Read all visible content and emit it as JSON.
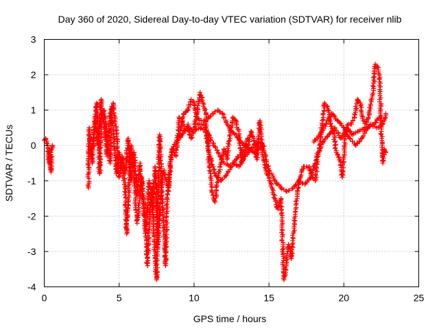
{
  "chart_data": {
    "type": "scatter",
    "title": "Day 360 of 2020, Sidereal Day-to-day VTEC variation (SDTVAR) for receiver nlib",
    "xlabel": "GPS time / hours",
    "ylabel": "SDTVAR / TECUs",
    "xlim": [
      0,
      25
    ],
    "ylim": [
      -4,
      3
    ],
    "x_ticks": [
      "0",
      "5",
      "10",
      "15",
      "20",
      "25"
    ],
    "y_ticks": [
      "3",
      "2",
      "1",
      "0",
      "-1",
      "-2",
      "-3",
      "-4"
    ],
    "grid": true,
    "marker": "+",
    "color": "#ff0000",
    "series": [
      {
        "name": "SDTVAR",
        "segments": [
          [
            [
              0.0,
              0.15
            ],
            [
              0.1,
              0.2
            ],
            [
              0.2,
              0.05
            ],
            [
              0.25,
              -0.3
            ],
            [
              0.3,
              -0.5
            ],
            [
              0.35,
              -0.1
            ],
            [
              0.4,
              -0.6
            ],
            [
              0.45,
              -0.75
            ],
            [
              0.5,
              -0.1
            ],
            [
              0.55,
              0.0
            ]
          ],
          [
            [
              2.95,
              -1.2
            ],
            [
              3.0,
              0.5
            ],
            [
              3.1,
              -0.3
            ],
            [
              3.3,
              0.2
            ],
            [
              3.5,
              1.2
            ],
            [
              3.6,
              0.3
            ],
            [
              3.7,
              -0.8
            ],
            [
              3.8,
              0.8
            ],
            [
              4.0,
              1.0
            ],
            [
              4.2,
              0.2
            ],
            [
              4.4,
              -0.5
            ],
            [
              4.5,
              1.1
            ],
            [
              4.6,
              0.4
            ],
            [
              4.8,
              -0.8
            ],
            [
              5.0,
              -0.2
            ],
            [
              5.2,
              -0.6
            ],
            [
              5.4,
              -1.2
            ],
            [
              5.5,
              -2.5
            ],
            [
              5.6,
              -1.6
            ],
            [
              5.8,
              0.0
            ],
            [
              6.0,
              -0.8
            ],
            [
              6.2,
              -2.2
            ],
            [
              6.3,
              -1.8
            ],
            [
              6.5,
              -0.9
            ],
            [
              6.7,
              -2.0
            ],
            [
              6.9,
              -3.4
            ],
            [
              7.0,
              -2.2
            ],
            [
              7.2,
              -1.2
            ],
            [
              7.4,
              -3.2
            ],
            [
              7.5,
              -3.8
            ],
            [
              7.6,
              -1.5
            ],
            [
              7.7,
              0.3
            ],
            [
              7.8,
              -0.8
            ],
            [
              8.0,
              -2.4
            ],
            [
              8.1,
              -3.4
            ],
            [
              8.2,
              -1.5
            ],
            [
              8.5,
              -0.1
            ],
            [
              8.8,
              -0.3
            ],
            [
              9.0,
              0.8
            ],
            [
              9.2,
              0.7
            ],
            [
              9.4,
              0.4
            ],
            [
              9.6,
              0.6
            ],
            [
              9.8,
              0.2
            ],
            [
              10.0,
              0.5
            ],
            [
              10.2,
              0.9
            ],
            [
              10.4,
              1.5
            ],
            [
              10.6,
              1.2
            ],
            [
              10.8,
              0.9
            ],
            [
              11.0,
              -0.5
            ],
            [
              11.2,
              -1.3
            ],
            [
              11.4,
              -1.6
            ],
            [
              11.6,
              -0.9
            ],
            [
              11.8,
              -0.5
            ],
            [
              12.0,
              -0.1
            ],
            [
              12.2,
              -0.4
            ],
            [
              12.4,
              0.3
            ],
            [
              12.6,
              0.8
            ],
            [
              12.8,
              0.7
            ],
            [
              13.0,
              0.3
            ],
            [
              13.2,
              -0.5
            ],
            [
              13.4,
              -0.2
            ],
            [
              13.6,
              0.0
            ],
            [
              13.8,
              0.4
            ],
            [
              14.0,
              0.2
            ],
            [
              14.2,
              -0.4
            ],
            [
              14.4,
              0.7
            ],
            [
              14.6,
              -0.3
            ],
            [
              14.8,
              -0.7
            ],
            [
              15.0,
              -0.9
            ],
            [
              15.2,
              -1.2
            ],
            [
              15.4,
              -1.5
            ],
            [
              15.6,
              -1.8
            ],
            [
              15.8,
              -1.5
            ],
            [
              16.0,
              -3.8
            ],
            [
              16.1,
              -3.5
            ],
            [
              16.3,
              -2.8
            ],
            [
              16.5,
              -3.2
            ],
            [
              16.7,
              -2.2
            ],
            [
              16.9,
              -1.3
            ],
            [
              17.1,
              -0.9
            ],
            [
              17.3,
              -0.6
            ],
            [
              17.5,
              -0.6
            ],
            [
              17.7,
              -0.6
            ],
            [
              17.9,
              -0.9
            ],
            [
              18.1,
              -1.0
            ],
            [
              18.3,
              -0.2
            ],
            [
              18.5,
              0.4
            ],
            [
              18.7,
              1.2
            ],
            [
              18.9,
              1.1
            ],
            [
              19.1,
              0.6
            ],
            [
              19.3,
              0.4
            ],
            [
              19.5,
              -0.2
            ],
            [
              19.7,
              -0.4
            ],
            [
              19.9,
              -0.9
            ],
            [
              20.1,
              0.4
            ],
            [
              20.3,
              0.6
            ],
            [
              20.5,
              0.6
            ],
            [
              20.7,
              0.8
            ],
            [
              20.9,
              1.3
            ],
            [
              21.1,
              1.2
            ],
            [
              21.3,
              0.7
            ],
            [
              21.5,
              0.6
            ],
            [
              21.7,
              0.9
            ],
            [
              21.9,
              1.4
            ],
            [
              22.1,
              2.3
            ],
            [
              22.3,
              2.2
            ],
            [
              22.4,
              1.8
            ],
            [
              22.5,
              0.4
            ],
            [
              22.6,
              -0.5
            ],
            [
              22.7,
              -0.1
            ],
            [
              22.8,
              -0.2
            ]
          ],
          [
            [
              3.0,
              0.2
            ],
            [
              3.2,
              -0.5
            ],
            [
              3.4,
              0.8
            ],
            [
              3.6,
              0.0
            ],
            [
              3.8,
              1.3
            ],
            [
              4.0,
              0.6
            ],
            [
              4.2,
              -0.3
            ],
            [
              4.4,
              0.9
            ],
            [
              4.6,
              1.2
            ],
            [
              4.8,
              0.5
            ],
            [
              5.0,
              -0.9
            ],
            [
              5.2,
              -0.3
            ],
            [
              5.4,
              -0.8
            ],
            [
              5.6,
              0.2
            ],
            [
              5.8,
              -1.0
            ],
            [
              6.0,
              -0.2
            ],
            [
              6.2,
              -1.4
            ],
            [
              6.4,
              -0.5
            ],
            [
              6.6,
              -1.6
            ],
            [
              6.8,
              -2.4
            ],
            [
              7.0,
              -1.0
            ],
            [
              7.2,
              -1.8
            ],
            [
              7.4,
              -0.6
            ],
            [
              7.6,
              -2.8
            ],
            [
              7.8,
              -1.2
            ],
            [
              8.0,
              -0.7
            ],
            [
              8.3,
              -1.3
            ],
            [
              8.5,
              -0.2
            ],
            [
              8.8,
              0.1
            ],
            [
              9.2,
              0.3
            ],
            [
              9.6,
              0.5
            ],
            [
              10.0,
              0.4
            ],
            [
              10.4,
              0.5
            ],
            [
              10.8,
              0.4
            ],
            [
              11.0,
              -0.2
            ],
            [
              11.4,
              -0.8
            ],
            [
              11.8,
              -1.0
            ],
            [
              12.2,
              -0.8
            ],
            [
              12.6,
              -0.5
            ],
            [
              13.0,
              -0.6
            ],
            [
              13.4,
              -0.3
            ],
            [
              13.8,
              -0.1
            ],
            [
              14.2,
              0.1
            ],
            [
              14.6,
              0.0
            ],
            [
              15.0,
              -0.7
            ],
            [
              15.4,
              -1.0
            ],
            [
              15.8,
              -1.2
            ],
            [
              16.2,
              -1.3
            ],
            [
              16.6,
              -1.2
            ],
            [
              17.0,
              -1.0
            ],
            [
              17.4,
              -1.1
            ],
            [
              17.8,
              -0.9
            ],
            [
              18.2,
              -0.3
            ],
            [
              18.6,
              0.1
            ],
            [
              19.0,
              0.3
            ],
            [
              19.4,
              0.5
            ],
            [
              19.8,
              0.2
            ],
            [
              20.2,
              0.5
            ],
            [
              20.6,
              0.3
            ],
            [
              21.0,
              0.4
            ],
            [
              21.4,
              0.5
            ],
            [
              21.8,
              0.6
            ],
            [
              22.2,
              0.5
            ],
            [
              22.6,
              0.6
            ],
            [
              22.8,
              0.9
            ]
          ],
          [
            [
              9.0,
              0.2
            ],
            [
              9.3,
              0.9
            ],
            [
              9.6,
              1.0
            ],
            [
              9.8,
              1.3
            ],
            [
              10.0,
              1.2
            ],
            [
              10.2,
              0.8
            ],
            [
              10.5,
              0.7
            ],
            [
              10.8,
              0.7
            ],
            [
              11.0,
              0.8
            ],
            [
              11.3,
              0.9
            ],
            [
              11.6,
              1.0
            ],
            [
              11.9,
              0.9
            ],
            [
              12.2,
              0.6
            ],
            [
              12.5,
              0.4
            ],
            [
              12.8,
              0.3
            ],
            [
              13.1,
              0.1
            ],
            [
              13.4,
              0.0
            ],
            [
              13.7,
              -0.1
            ],
            [
              14.0,
              -0.2
            ],
            [
              14.3,
              -0.1
            ],
            [
              14.6,
              0.0
            ]
          ],
          [
            [
              10.2,
              0.6
            ],
            [
              10.6,
              0.6
            ],
            [
              11.0,
              0.3
            ],
            [
              11.3,
              0.0
            ],
            [
              11.6,
              -0.2
            ],
            [
              12.0,
              -0.5
            ],
            [
              12.4,
              -0.6
            ],
            [
              12.8,
              -0.4
            ],
            [
              13.2,
              -0.2
            ],
            [
              13.6,
              0.2
            ]
          ],
          [
            [
              18.0,
              0.1
            ],
            [
              18.4,
              0.3
            ],
            [
              18.8,
              0.6
            ],
            [
              19.2,
              0.9
            ],
            [
              19.6,
              0.7
            ],
            [
              20.0,
              0.5
            ],
            [
              20.4,
              0.2
            ],
            [
              20.8,
              0.0
            ],
            [
              21.2,
              0.2
            ],
            [
              21.6,
              0.5
            ],
            [
              22.0,
              0.6
            ],
            [
              22.4,
              0.8
            ]
          ]
        ]
      }
    ]
  }
}
